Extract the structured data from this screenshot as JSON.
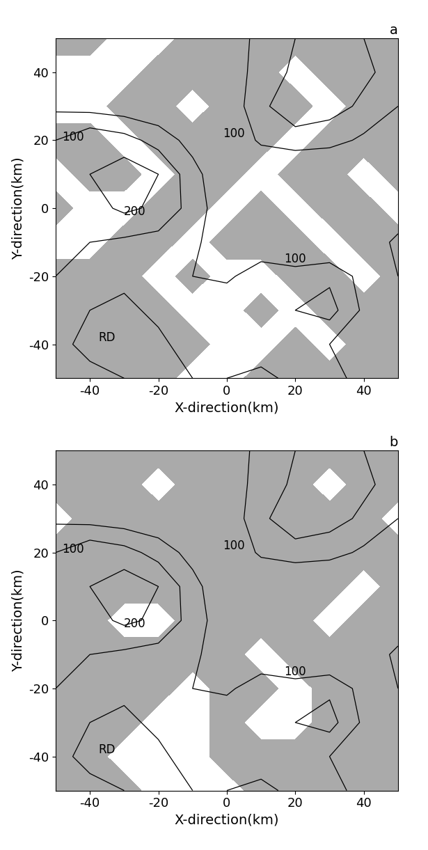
{
  "chart_data": [
    {
      "type": "contour",
      "panel_label": "a",
      "xlabel": "X-direction(km)",
      "ylabel": "Y-direction(km)",
      "xlim": [
        -50,
        50
      ],
      "ylim": [
        -50,
        50
      ],
      "xticks": [
        -40,
        -20,
        0,
        20,
        40
      ],
      "yticks": [
        -40,
        -20,
        0,
        20,
        40
      ],
      "x": [
        -50,
        -40,
        -30,
        -20,
        -10,
        0,
        10,
        20,
        30,
        40,
        50
      ],
      "y": [
        -50,
        -40,
        -30,
        -20,
        -10,
        0,
        10,
        20,
        30,
        40,
        50
      ],
      "terrain": [
        [
          120,
          110,
          100,
          80,
          100,
          150,
          160,
          140,
          120,
          80,
          60
        ],
        [
          110,
          90,
          80,
          90,
          120,
          150,
          130,
          110,
          100,
          70,
          50
        ],
        [
          130,
          100,
          90,
          110,
          130,
          140,
          120,
          150,
          170,
          90,
          60
        ],
        [
          150,
          120,
          110,
          120,
          100,
          90,
          130,
          120,
          140,
          80,
          100
        ],
        [
          160,
          150,
          140,
          130,
          110,
          70,
          60,
          50,
          40,
          40,
          120
        ],
        [
          170,
          180,
          210,
          190,
          130,
          60,
          50,
          40,
          30,
          30,
          40
        ],
        [
          180,
          200,
          230,
          200,
          120,
          50,
          40,
          30,
          30,
          20,
          20
        ],
        [
          150,
          190,
          170,
          130,
          80,
          50,
          110,
          130,
          120,
          90,
          60
        ],
        [
          90,
          80,
          70,
          60,
          50,
          60,
          140,
          180,
          170,
          140,
          100
        ],
        [
          60,
          50,
          40,
          40,
          40,
          70,
          120,
          160,
          190,
          160,
          130
        ],
        [
          40,
          40,
          30,
          30,
          40,
          80,
          110,
          150,
          170,
          150,
          120
        ]
      ],
      "contour_levels": [
        100,
        150,
        200
      ],
      "color": "#aaaaaa",
      "shaded": [
        [
          1,
          1,
          1,
          1,
          0,
          0,
          1,
          1,
          1,
          1,
          1
        ],
        [
          1,
          1,
          1,
          1,
          1,
          0,
          0,
          1,
          0,
          1,
          1
        ],
        [
          1,
          1,
          1,
          1,
          0,
          0,
          1,
          0,
          1,
          1,
          1
        ],
        [
          1,
          1,
          1,
          0,
          1,
          0,
          0,
          1,
          1,
          0,
          1
        ],
        [
          0,
          0,
          1,
          1,
          0,
          1,
          1,
          1,
          0,
          1,
          1
        ],
        [
          1,
          0,
          0,
          1,
          1,
          0,
          1,
          0,
          1,
          1,
          0
        ],
        [
          0,
          1,
          1,
          0,
          1,
          1,
          0,
          1,
          1,
          0,
          1
        ],
        [
          1,
          1,
          0,
          1,
          1,
          1,
          1,
          0,
          1,
          1,
          1
        ],
        [
          0,
          0,
          1,
          1,
          0,
          1,
          1,
          1,
          0,
          1,
          1
        ],
        [
          0,
          0,
          0,
          1,
          1,
          1,
          1,
          0,
          1,
          1,
          1
        ],
        [
          1,
          1,
          0,
          0,
          1,
          1,
          1,
          1,
          1,
          1,
          1
        ]
      ],
      "annotations": [
        {
          "text": "100",
          "x": -45,
          "y": 21
        },
        {
          "text": "100",
          "x": 2,
          "y": 22
        },
        {
          "text": "200",
          "x": -27,
          "y": -1
        },
        {
          "text": "100",
          "x": 20,
          "y": -15
        },
        {
          "text": "RD",
          "x": -35,
          "y": -38
        }
      ]
    },
    {
      "type": "contour",
      "panel_label": "b",
      "xlabel": "X-direction(km)",
      "ylabel": "Y-direction(km)",
      "xlim": [
        -50,
        50
      ],
      "ylim": [
        -50,
        50
      ],
      "xticks": [
        -40,
        -20,
        0,
        20,
        40
      ],
      "yticks": [
        -40,
        -20,
        0,
        20,
        40
      ],
      "x": [
        -50,
        -40,
        -30,
        -20,
        -10,
        0,
        10,
        20,
        30,
        40,
        50
      ],
      "y": [
        -50,
        -40,
        -30,
        -20,
        -10,
        0,
        10,
        20,
        30,
        40,
        50
      ],
      "terrain": [
        [
          120,
          110,
          100,
          80,
          100,
          150,
          160,
          140,
          120,
          80,
          60
        ],
        [
          110,
          90,
          80,
          90,
          120,
          150,
          130,
          110,
          100,
          70,
          50
        ],
        [
          130,
          100,
          90,
          110,
          130,
          140,
          120,
          150,
          170,
          90,
          60
        ],
        [
          150,
          120,
          110,
          120,
          100,
          90,
          130,
          120,
          140,
          80,
          100
        ],
        [
          160,
          150,
          140,
          130,
          110,
          70,
          60,
          50,
          40,
          40,
          120
        ],
        [
          170,
          180,
          210,
          190,
          130,
          60,
          50,
          40,
          30,
          30,
          40
        ],
        [
          180,
          200,
          230,
          200,
          120,
          50,
          40,
          30,
          30,
          20,
          20
        ],
        [
          150,
          190,
          170,
          130,
          80,
          50,
          110,
          130,
          120,
          90,
          60
        ],
        [
          90,
          80,
          70,
          60,
          50,
          60,
          140,
          180,
          170,
          140,
          100
        ],
        [
          60,
          50,
          40,
          40,
          40,
          70,
          120,
          160,
          190,
          160,
          130
        ],
        [
          40,
          40,
          30,
          30,
          40,
          80,
          110,
          150,
          170,
          150,
          120
        ]
      ],
      "contour_levels": [
        100,
        150,
        200
      ],
      "color": "#aaaaaa",
      "shaded": [
        [
          1,
          1,
          1,
          0,
          0,
          0,
          1,
          1,
          1,
          1,
          1
        ],
        [
          1,
          1,
          0,
          0,
          0,
          1,
          1,
          1,
          1,
          1,
          1
        ],
        [
          1,
          1,
          1,
          0,
          0,
          1,
          0,
          0,
          1,
          1,
          1
        ],
        [
          1,
          1,
          1,
          1,
          0,
          1,
          1,
          0,
          1,
          1,
          1
        ],
        [
          1,
          1,
          1,
          1,
          1,
          1,
          0,
          1,
          1,
          1,
          1
        ],
        [
          1,
          1,
          0,
          0,
          1,
          1,
          1,
          1,
          0,
          1,
          1
        ],
        [
          1,
          1,
          1,
          1,
          1,
          1,
          1,
          1,
          1,
          0,
          1
        ],
        [
          1,
          1,
          1,
          1,
          1,
          1,
          1,
          1,
          1,
          1,
          1
        ],
        [
          0,
          1,
          1,
          1,
          1,
          1,
          1,
          1,
          1,
          1,
          0
        ],
        [
          1,
          1,
          1,
          0,
          1,
          1,
          1,
          1,
          0,
          1,
          1
        ],
        [
          1,
          1,
          1,
          1,
          1,
          1,
          1,
          1,
          1,
          1,
          1
        ]
      ],
      "annotations": [
        {
          "text": "100",
          "x": -45,
          "y": 21
        },
        {
          "text": "100",
          "x": 2,
          "y": 22
        },
        {
          "text": "200",
          "x": -27,
          "y": -1
        },
        {
          "text": "100",
          "x": 20,
          "y": -15
        },
        {
          "text": "RD",
          "x": -35,
          "y": -38
        }
      ]
    }
  ]
}
